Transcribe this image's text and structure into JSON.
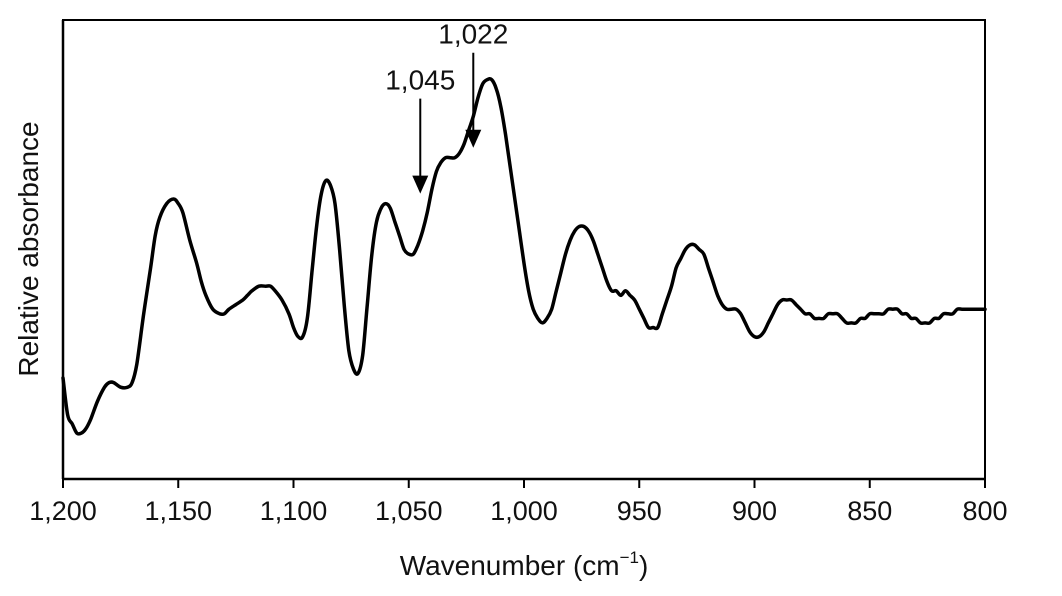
{
  "chart_data": {
    "type": "line",
    "title": "",
    "xlabel": "Wavenumber (cm",
    "xlabel_sup": "−1",
    "xlabel_close": ")",
    "ylabel": "Relative absorbance",
    "xlim": [
      1200,
      800
    ],
    "ylim": [
      0,
      1
    ],
    "x_reversed": true,
    "grid": false,
    "legend": "none",
    "x_ticks": [
      {
        "value": 1200,
        "label": "1,200"
      },
      {
        "value": 1150,
        "label": "1,150"
      },
      {
        "value": 1100,
        "label": "1,100"
      },
      {
        "value": 1050,
        "label": "1,050"
      },
      {
        "value": 1000,
        "label": "1,000"
      },
      {
        "value": 950,
        "label": "950"
      },
      {
        "value": 900,
        "label": "900"
      },
      {
        "value": 850,
        "label": "850"
      },
      {
        "value": 800,
        "label": "800"
      }
    ],
    "series": [
      {
        "color": "#000000",
        "x": [
          1200,
          1198,
          1196,
          1194,
          1192,
          1190,
          1188,
          1185,
          1182,
          1180,
          1178,
          1175,
          1172,
          1170,
          1168,
          1165,
          1162,
          1160,
          1158,
          1155,
          1152,
          1150,
          1148,
          1145,
          1142,
          1140,
          1138,
          1135,
          1132,
          1130,
          1128,
          1125,
          1122,
          1120,
          1118,
          1115,
          1112,
          1110,
          1108,
          1105,
          1102,
          1100,
          1098,
          1096,
          1094,
          1092,
          1090,
          1088,
          1086,
          1084,
          1082,
          1080,
          1078,
          1076,
          1074,
          1072,
          1070,
          1068,
          1066,
          1064,
          1062,
          1060,
          1058,
          1056,
          1054,
          1052,
          1050,
          1048,
          1046,
          1044,
          1042,
          1040,
          1038,
          1036,
          1034,
          1032,
          1030,
          1028,
          1026,
          1024,
          1022,
          1020,
          1018,
          1016,
          1014,
          1012,
          1010,
          1008,
          1006,
          1004,
          1002,
          1000,
          998,
          996,
          994,
          992,
          990,
          988,
          986,
          984,
          982,
          980,
          978,
          976,
          974,
          972,
          970,
          968,
          966,
          964,
          962,
          960,
          958,
          956,
          954,
          952,
          950,
          948,
          946,
          944,
          942,
          940,
          938,
          936,
          934,
          932,
          930,
          928,
          926,
          924,
          922,
          920,
          918,
          916,
          914,
          912,
          910,
          908,
          906,
          904,
          902,
          900,
          898,
          896,
          894,
          892,
          890,
          888,
          886,
          884,
          882,
          880,
          878,
          876,
          874,
          872,
          870,
          868,
          866,
          864,
          862,
          860,
          858,
          856,
          854,
          852,
          850,
          848,
          846,
          844,
          842,
          840,
          838,
          836,
          834,
          832,
          830,
          828,
          826,
          824,
          822,
          820,
          818,
          816,
          814,
          812,
          810,
          808,
          806,
          804,
          802,
          800
        ],
        "y": [
          0.22,
          0.14,
          0.12,
          0.1,
          0.1,
          0.11,
          0.13,
          0.17,
          0.2,
          0.21,
          0.21,
          0.2,
          0.2,
          0.21,
          0.25,
          0.36,
          0.46,
          0.53,
          0.57,
          0.6,
          0.61,
          0.6,
          0.58,
          0.52,
          0.47,
          0.43,
          0.4,
          0.37,
          0.36,
          0.36,
          0.37,
          0.38,
          0.39,
          0.4,
          0.41,
          0.42,
          0.42,
          0.42,
          0.41,
          0.39,
          0.36,
          0.33,
          0.31,
          0.31,
          0.35,
          0.45,
          0.55,
          0.62,
          0.65,
          0.64,
          0.6,
          0.5,
          0.38,
          0.28,
          0.24,
          0.23,
          0.27,
          0.38,
          0.49,
          0.56,
          0.59,
          0.6,
          0.59,
          0.56,
          0.53,
          0.5,
          0.49,
          0.49,
          0.51,
          0.54,
          0.58,
          0.63,
          0.67,
          0.69,
          0.7,
          0.7,
          0.7,
          0.71,
          0.73,
          0.76,
          0.79,
          0.83,
          0.86,
          0.87,
          0.87,
          0.85,
          0.81,
          0.75,
          0.68,
          0.61,
          0.54,
          0.47,
          0.41,
          0.37,
          0.35,
          0.34,
          0.35,
          0.37,
          0.41,
          0.45,
          0.49,
          0.52,
          0.54,
          0.55,
          0.55,
          0.54,
          0.52,
          0.49,
          0.46,
          0.43,
          0.41,
          0.41,
          0.4,
          0.41,
          0.4,
          0.39,
          0.37,
          0.35,
          0.33,
          0.33,
          0.33,
          0.36,
          0.39,
          0.42,
          0.46,
          0.48,
          0.5,
          0.51,
          0.51,
          0.5,
          0.49,
          0.46,
          0.43,
          0.4,
          0.38,
          0.37,
          0.37,
          0.37,
          0.36,
          0.34,
          0.32,
          0.31,
          0.31,
          0.32,
          0.34,
          0.36,
          0.38,
          0.39,
          0.39,
          0.39,
          0.38,
          0.37,
          0.36,
          0.36,
          0.35,
          0.35,
          0.35,
          0.36,
          0.36,
          0.36,
          0.35,
          0.34,
          0.34,
          0.34,
          0.35,
          0.35,
          0.36,
          0.36,
          0.36,
          0.36,
          0.37,
          0.37,
          0.37,
          0.36,
          0.36,
          0.35,
          0.35,
          0.34,
          0.34,
          0.34,
          0.35,
          0.35,
          0.36,
          0.36,
          0.36,
          0.37,
          0.37,
          0.37,
          0.37,
          0.37,
          0.37,
          0.37
        ]
      }
    ],
    "annotations": [
      {
        "label": "1,045",
        "x": 1045,
        "y": 0.6
      },
      {
        "label": "1,022",
        "x": 1022,
        "y": 0.7
      }
    ]
  }
}
